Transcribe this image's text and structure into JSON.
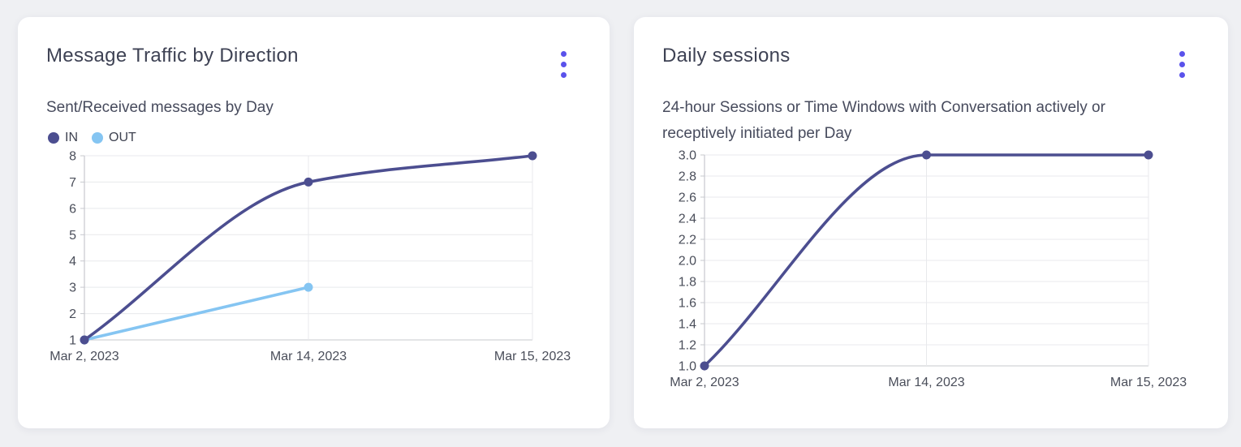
{
  "page": {
    "background": "#eff0f3"
  },
  "colors": {
    "grid": "#e8e9ec",
    "axis": "#c7c8ce",
    "tick_text": "#4a4e5a",
    "title_text": "#3e4254",
    "subtitle_text": "#474b5d"
  },
  "menu": {
    "icon": "kebab-menu-icon",
    "color": "#5a52eb"
  },
  "chart_data": [
    {
      "type": "line",
      "title": "Message Traffic by Direction",
      "subtitle_lines": [
        "Sent/Received messages by Day"
      ],
      "categories": [
        "Mar 2, 2023",
        "Mar 14, 2023",
        "Mar 15, 2023"
      ],
      "series": [
        {
          "name": "IN",
          "color": "#4c4e90",
          "values": [
            1,
            7,
            8
          ]
        },
        {
          "name": "OUT",
          "color": "#85c5f2",
          "values": [
            1,
            3,
            null
          ]
        }
      ],
      "ylim": [
        1,
        8
      ],
      "ytick_values": [
        1,
        2,
        3,
        4,
        5,
        6,
        7,
        8
      ],
      "ytick_labels": [
        "1",
        "2",
        "3",
        "4",
        "5",
        "6",
        "7",
        "8"
      ],
      "xlabel": "",
      "ylabel": "",
      "grid": true,
      "curve": "smooth",
      "legend_position": "top-left"
    },
    {
      "type": "line",
      "title": "Daily sessions",
      "subtitle_lines": [
        "24-hour Sessions or Time Windows with Conversation actively or",
        "receptively initiated per Day"
      ],
      "categories": [
        "Mar 2, 2023",
        "Mar 14, 2023",
        "Mar 15, 2023"
      ],
      "series": [
        {
          "name": "Daily sessions",
          "color": "#4c4e90",
          "values": [
            1.0,
            3.0,
            3.0
          ]
        }
      ],
      "ylim": [
        1.0,
        3.0
      ],
      "ytick_values": [
        1.0,
        1.2,
        1.4,
        1.6,
        1.8,
        2.0,
        2.2,
        2.4,
        2.6,
        2.8,
        3.0
      ],
      "ytick_labels": [
        "1.0",
        "1.2",
        "1.4",
        "1.6",
        "1.8",
        "2.0",
        "2.2",
        "2.4",
        "2.6",
        "2.8",
        "3.0"
      ],
      "xlabel": "",
      "ylabel": "",
      "grid": true,
      "curve": "smooth",
      "legend_position": "none"
    }
  ]
}
